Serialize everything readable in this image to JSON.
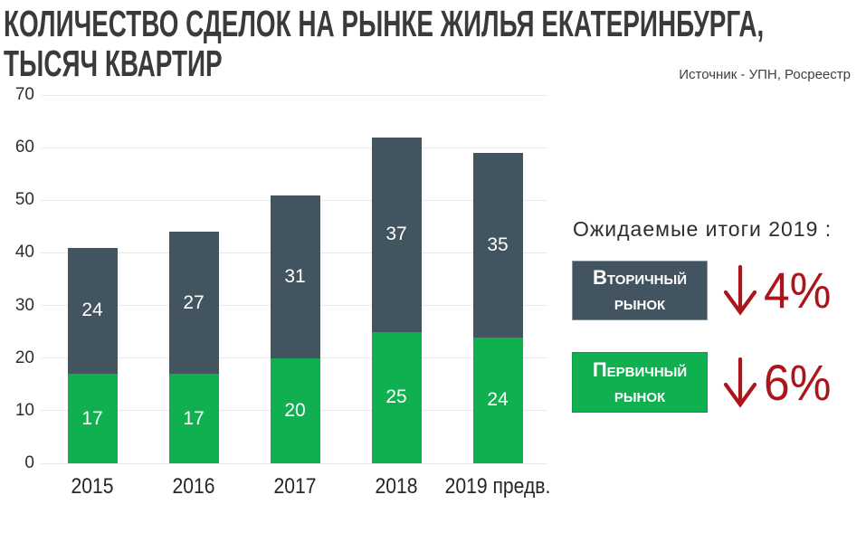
{
  "title": {
    "line1": "КОЛИЧЕСТВО СДЕЛОК НА РЫНКЕ ЖИЛЬЯ ЕКАТЕРИНБУРГА,",
    "line2": "ТЫСЯЧ КВАРТИР"
  },
  "source": "Источник - УПН, Росреестр",
  "chart_data": {
    "type": "bar",
    "stacked": true,
    "title": "КОЛИЧЕСТВО СДЕЛОК НА РЫНКЕ ЖИЛЬЯ ЕКАТЕРИНБУРГА, ТЫСЯЧ КВАРТИР",
    "categories": [
      "2015",
      "2016",
      "2017",
      "2018",
      "2019 предв."
    ],
    "series": [
      {
        "name": "Первичный рынок",
        "color": "#10af50",
        "values": [
          17,
          17,
          20,
          25,
          24
        ]
      },
      {
        "name": "Вторичный рынок",
        "color": "#42545f",
        "values": [
          24,
          27,
          31,
          37,
          35
        ]
      }
    ],
    "totals": [
      41,
      44,
      51,
      62,
      59
    ],
    "xlabel": "",
    "ylabel": "",
    "ylim": [
      0,
      70
    ],
    "yticks": [
      0,
      10,
      20,
      30,
      40,
      50,
      60,
      70
    ],
    "grid": true,
    "legend_position": "none"
  },
  "panel": {
    "heading": "Ожидаемые итоги 2019 :",
    "rows": [
      {
        "label": "Вторичный рынок",
        "box_color": "#42545f",
        "direction": "down",
        "change": "4%"
      },
      {
        "label": "Первичный рынок",
        "box_color": "#10af50",
        "direction": "down",
        "change": "6%"
      }
    ]
  },
  "colors": {
    "bar_primary": "#10af50",
    "bar_secondary": "#42545f",
    "accent_red": "#ab151c",
    "gridline": "#e9e9e9",
    "title_text": "#3a3a3a",
    "bar_label": "#ffffff"
  }
}
